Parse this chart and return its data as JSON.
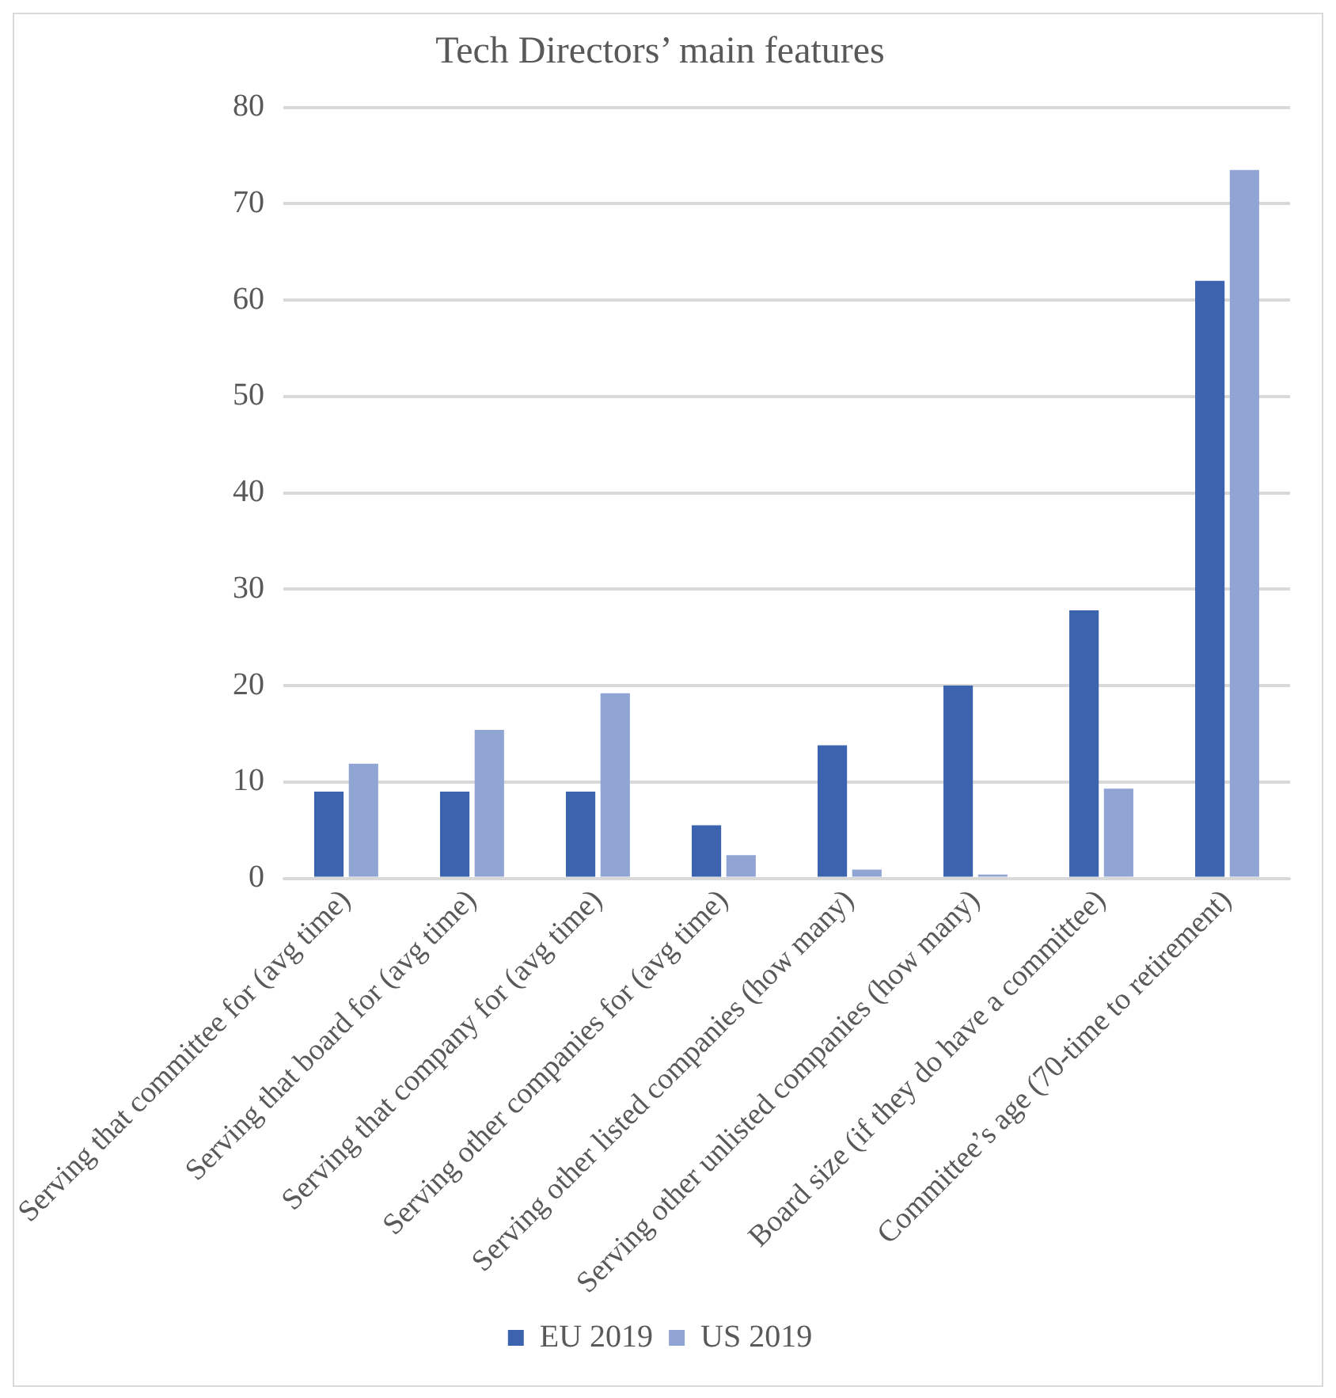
{
  "chart_data": {
    "type": "bar",
    "title": "Tech Directors’ main features",
    "categories": [
      "Serving that committee for (avg time)",
      "Serving that board for (avg time)",
      "Serving that company for (avg time)",
      "Serving other companies for (avg time)",
      "Serving other listed companies (how many)",
      "Serving other unlisted companies (how many)",
      "Board size (if they do have a committee)",
      "Committee’s age (70-time to retirement)"
    ],
    "series": [
      {
        "name": "EU 2019",
        "color": "#3c64ae",
        "values": [
          9,
          9,
          9,
          5.5,
          13.8,
          20,
          27.8,
          62
        ]
      },
      {
        "name": "US 2019",
        "color": "#91a5d4",
        "values": [
          11.9,
          15.4,
          19.2,
          2.4,
          0.9,
          0.4,
          9.3,
          73.5
        ]
      }
    ],
    "ylim": [
      0,
      80
    ],
    "yticks": [
      0,
      10,
      20,
      30,
      40,
      50,
      60,
      70,
      80
    ],
    "grid": "y",
    "legend": "bottom"
  }
}
